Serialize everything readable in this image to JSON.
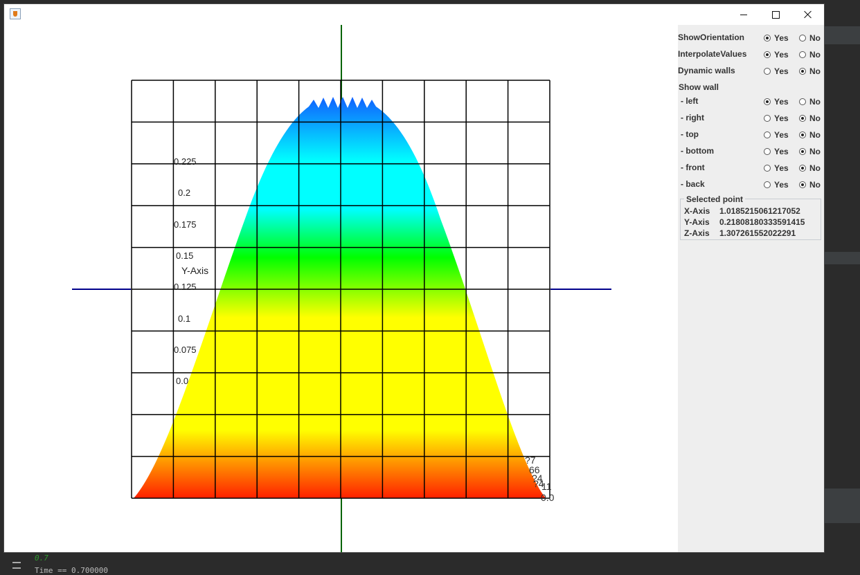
{
  "background": {
    "console_lines": [
      "0.7",
      "Time == 0.700000"
    ]
  },
  "window": {
    "app_icon": "java-cup-icon",
    "controls": {
      "minimize": "minimize-icon",
      "maximize": "maximize-icon",
      "close": "close-icon"
    }
  },
  "plot": {
    "y_axis_title": "Y-Axis",
    "y_ticks": [
      "0.225",
      "0.2",
      "0.175",
      "0.15",
      "0.125",
      "0.1",
      "0.075",
      "0.0"
    ],
    "corner_labels": [
      "?7",
      "66",
      "?4",
      "?4",
      "11",
      "0.0"
    ],
    "colors": {
      "axis_x": "#00008b",
      "axis_y": "#006400",
      "grid": "#000000"
    },
    "colormap": [
      "#ff2000",
      "#ffff00",
      "#00ff00",
      "#00ffff",
      "#1060ff"
    ]
  },
  "panel": {
    "options": [
      {
        "label": "ShowOrientation",
        "yes": "Yes",
        "no": "No",
        "selected": "yes"
      },
      {
        "label": "InterpolateValues",
        "yes": "Yes",
        "no": "No",
        "selected": "yes"
      },
      {
        "label": "Dynamic walls",
        "yes": "Yes",
        "no": "No",
        "selected": "no"
      }
    ],
    "show_wall_title": "Show wall",
    "walls": [
      {
        "label": "- left",
        "yes": "Yes",
        "no": "No",
        "selected": "yes"
      },
      {
        "label": "- right",
        "yes": "Yes",
        "no": "No",
        "selected": "no"
      },
      {
        "label": "- top",
        "yes": "Yes",
        "no": "No",
        "selected": "no"
      },
      {
        "label": "- bottom",
        "yes": "Yes",
        "no": "No",
        "selected": "no"
      },
      {
        "label": "- front",
        "yes": "Yes",
        "no": "No",
        "selected": "no"
      },
      {
        "label": "- back",
        "yes": "Yes",
        "no": "No",
        "selected": "no"
      }
    ],
    "selected_point": {
      "title": "Selected point",
      "x_key": "X-Axis",
      "x_value": "1.0185215061217052",
      "y_key": "Y-Axis",
      "y_value": "0.21808180333591415",
      "z_key": "Z-Axis",
      "z_value": "1.307261552022291"
    }
  }
}
